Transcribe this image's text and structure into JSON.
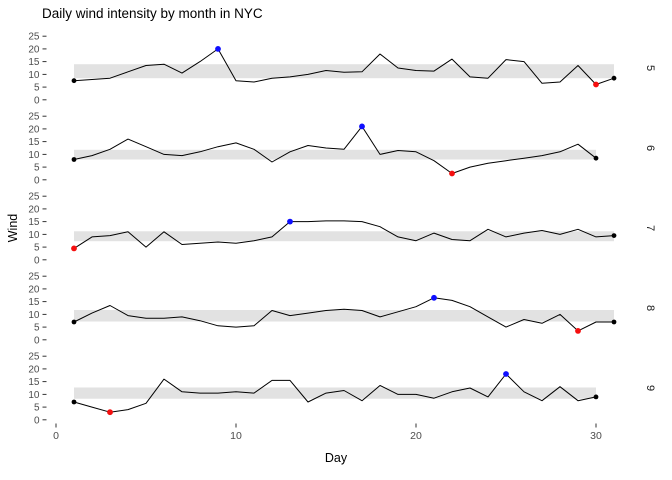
{
  "title": "Daily wind intensity by month in NYC",
  "colors": {
    "background": "#ffffff",
    "line": "#000000",
    "band": "#e2e2e2",
    "blue_point": "#0f0fff",
    "red_point": "#f50f0f",
    "black_point": "#000000",
    "tick_text": "#4d4d4d",
    "tick_mark": "#333333",
    "strip_text": "#1a1a1a"
  },
  "chart_data": {
    "type": "line",
    "title": "Daily wind intensity by month in NYC",
    "xlabel": "Day",
    "ylabel": "Wind",
    "x_ticks": [
      0,
      10,
      20,
      30
    ],
    "y_ticks": [
      0,
      5,
      10,
      15,
      20,
      25
    ],
    "xlim": [
      -0.5,
      32.5
    ],
    "ylim": [
      0,
      25
    ],
    "grid": "off",
    "legend": "none",
    "facet_variable": "month",
    "facet_strip_side": "right",
    "facets": [
      {
        "strip_label": "5",
        "days_in_month": 31,
        "band_ymin": 8.5,
        "band_ymax": 14,
        "blue_point": {
          "day": 9,
          "value": 20
        },
        "red_point": {
          "day": 30,
          "value": 6
        },
        "black_points": [
          {
            "day": 1,
            "value": 7.5
          },
          {
            "day": 31,
            "value": 8.5
          }
        ],
        "values": [
          7.5,
          8,
          8.5,
          11,
          13.5,
          14,
          10.5,
          15,
          20,
          7.5,
          7,
          8.5,
          9,
          10,
          11.5,
          10.8,
          11,
          18,
          12.5,
          11.5,
          11.3,
          16,
          9,
          8.5,
          15.8,
          15,
          6.5,
          7,
          13.5,
          6,
          8.5
        ]
      },
      {
        "strip_label": "6",
        "days_in_month": 30,
        "band_ymin": 8,
        "band_ymax": 11.8,
        "blue_point": {
          "day": 17,
          "value": 21
        },
        "red_point": {
          "day": 22,
          "value": 2.5
        },
        "black_points": [
          {
            "day": 1,
            "value": 8
          },
          {
            "day": 30,
            "value": 8.5
          }
        ],
        "values": [
          8,
          9.5,
          12,
          16,
          13,
          10,
          9.5,
          11,
          13,
          14.5,
          12,
          7,
          11,
          13.5,
          12.5,
          12,
          21,
          10,
          11.5,
          11,
          7.5,
          2.5,
          5,
          6.5,
          7.5,
          8.5,
          9.5,
          11,
          14,
          8.5
        ]
      },
      {
        "strip_label": "7",
        "days_in_month": 31,
        "band_ymin": 7.3,
        "band_ymax": 11.2,
        "blue_point": {
          "day": 13,
          "value": 15
        },
        "red_point": {
          "day": 1,
          "value": 4.5
        },
        "black_points": [
          {
            "day": 31,
            "value": 9.5
          }
        ],
        "values": [
          4.5,
          9,
          9.5,
          11,
          5,
          11,
          6,
          6.5,
          7,
          6.5,
          7.5,
          9,
          15,
          15,
          15.3,
          15.3,
          15,
          13,
          9,
          7.5,
          10.5,
          8,
          7.5,
          12,
          9,
          10.5,
          11.5,
          10,
          12,
          9,
          9.5
        ]
      },
      {
        "strip_label": "8",
        "days_in_month": 31,
        "band_ymin": 7.2,
        "band_ymax": 11.7,
        "blue_point": {
          "day": 21,
          "value": 16.5
        },
        "red_point": {
          "day": 29,
          "value": 3.5
        },
        "black_points": [
          {
            "day": 1,
            "value": 7
          },
          {
            "day": 31,
            "value": 7
          }
        ],
        "values": [
          7,
          10.5,
          13.5,
          9.5,
          8.5,
          8.5,
          9,
          7.5,
          5.5,
          5,
          5.5,
          11.5,
          9.5,
          10.5,
          11.5,
          12,
          11.5,
          9,
          11,
          13,
          16.5,
          15.5,
          13,
          9,
          5,
          8,
          6.5,
          10,
          3.5,
          7,
          7
        ]
      },
      {
        "strip_label": "9",
        "days_in_month": 30,
        "band_ymin": 8.3,
        "band_ymax": 12.7,
        "blue_point": {
          "day": 25,
          "value": 18
        },
        "red_point": {
          "day": 3,
          "value": 3
        },
        "black_points": [
          {
            "day": 1,
            "value": 7
          },
          {
            "day": 30,
            "value": 9
          }
        ],
        "values": [
          7,
          5,
          3,
          4,
          6.5,
          16,
          11,
          10.5,
          10.5,
          11,
          10.5,
          15.5,
          15.5,
          7,
          10.5,
          11.5,
          7.5,
          13.5,
          10,
          10,
          8.5,
          11,
          12.5,
          9,
          18,
          11,
          7.5,
          13,
          7.5,
          9
        ]
      }
    ]
  }
}
